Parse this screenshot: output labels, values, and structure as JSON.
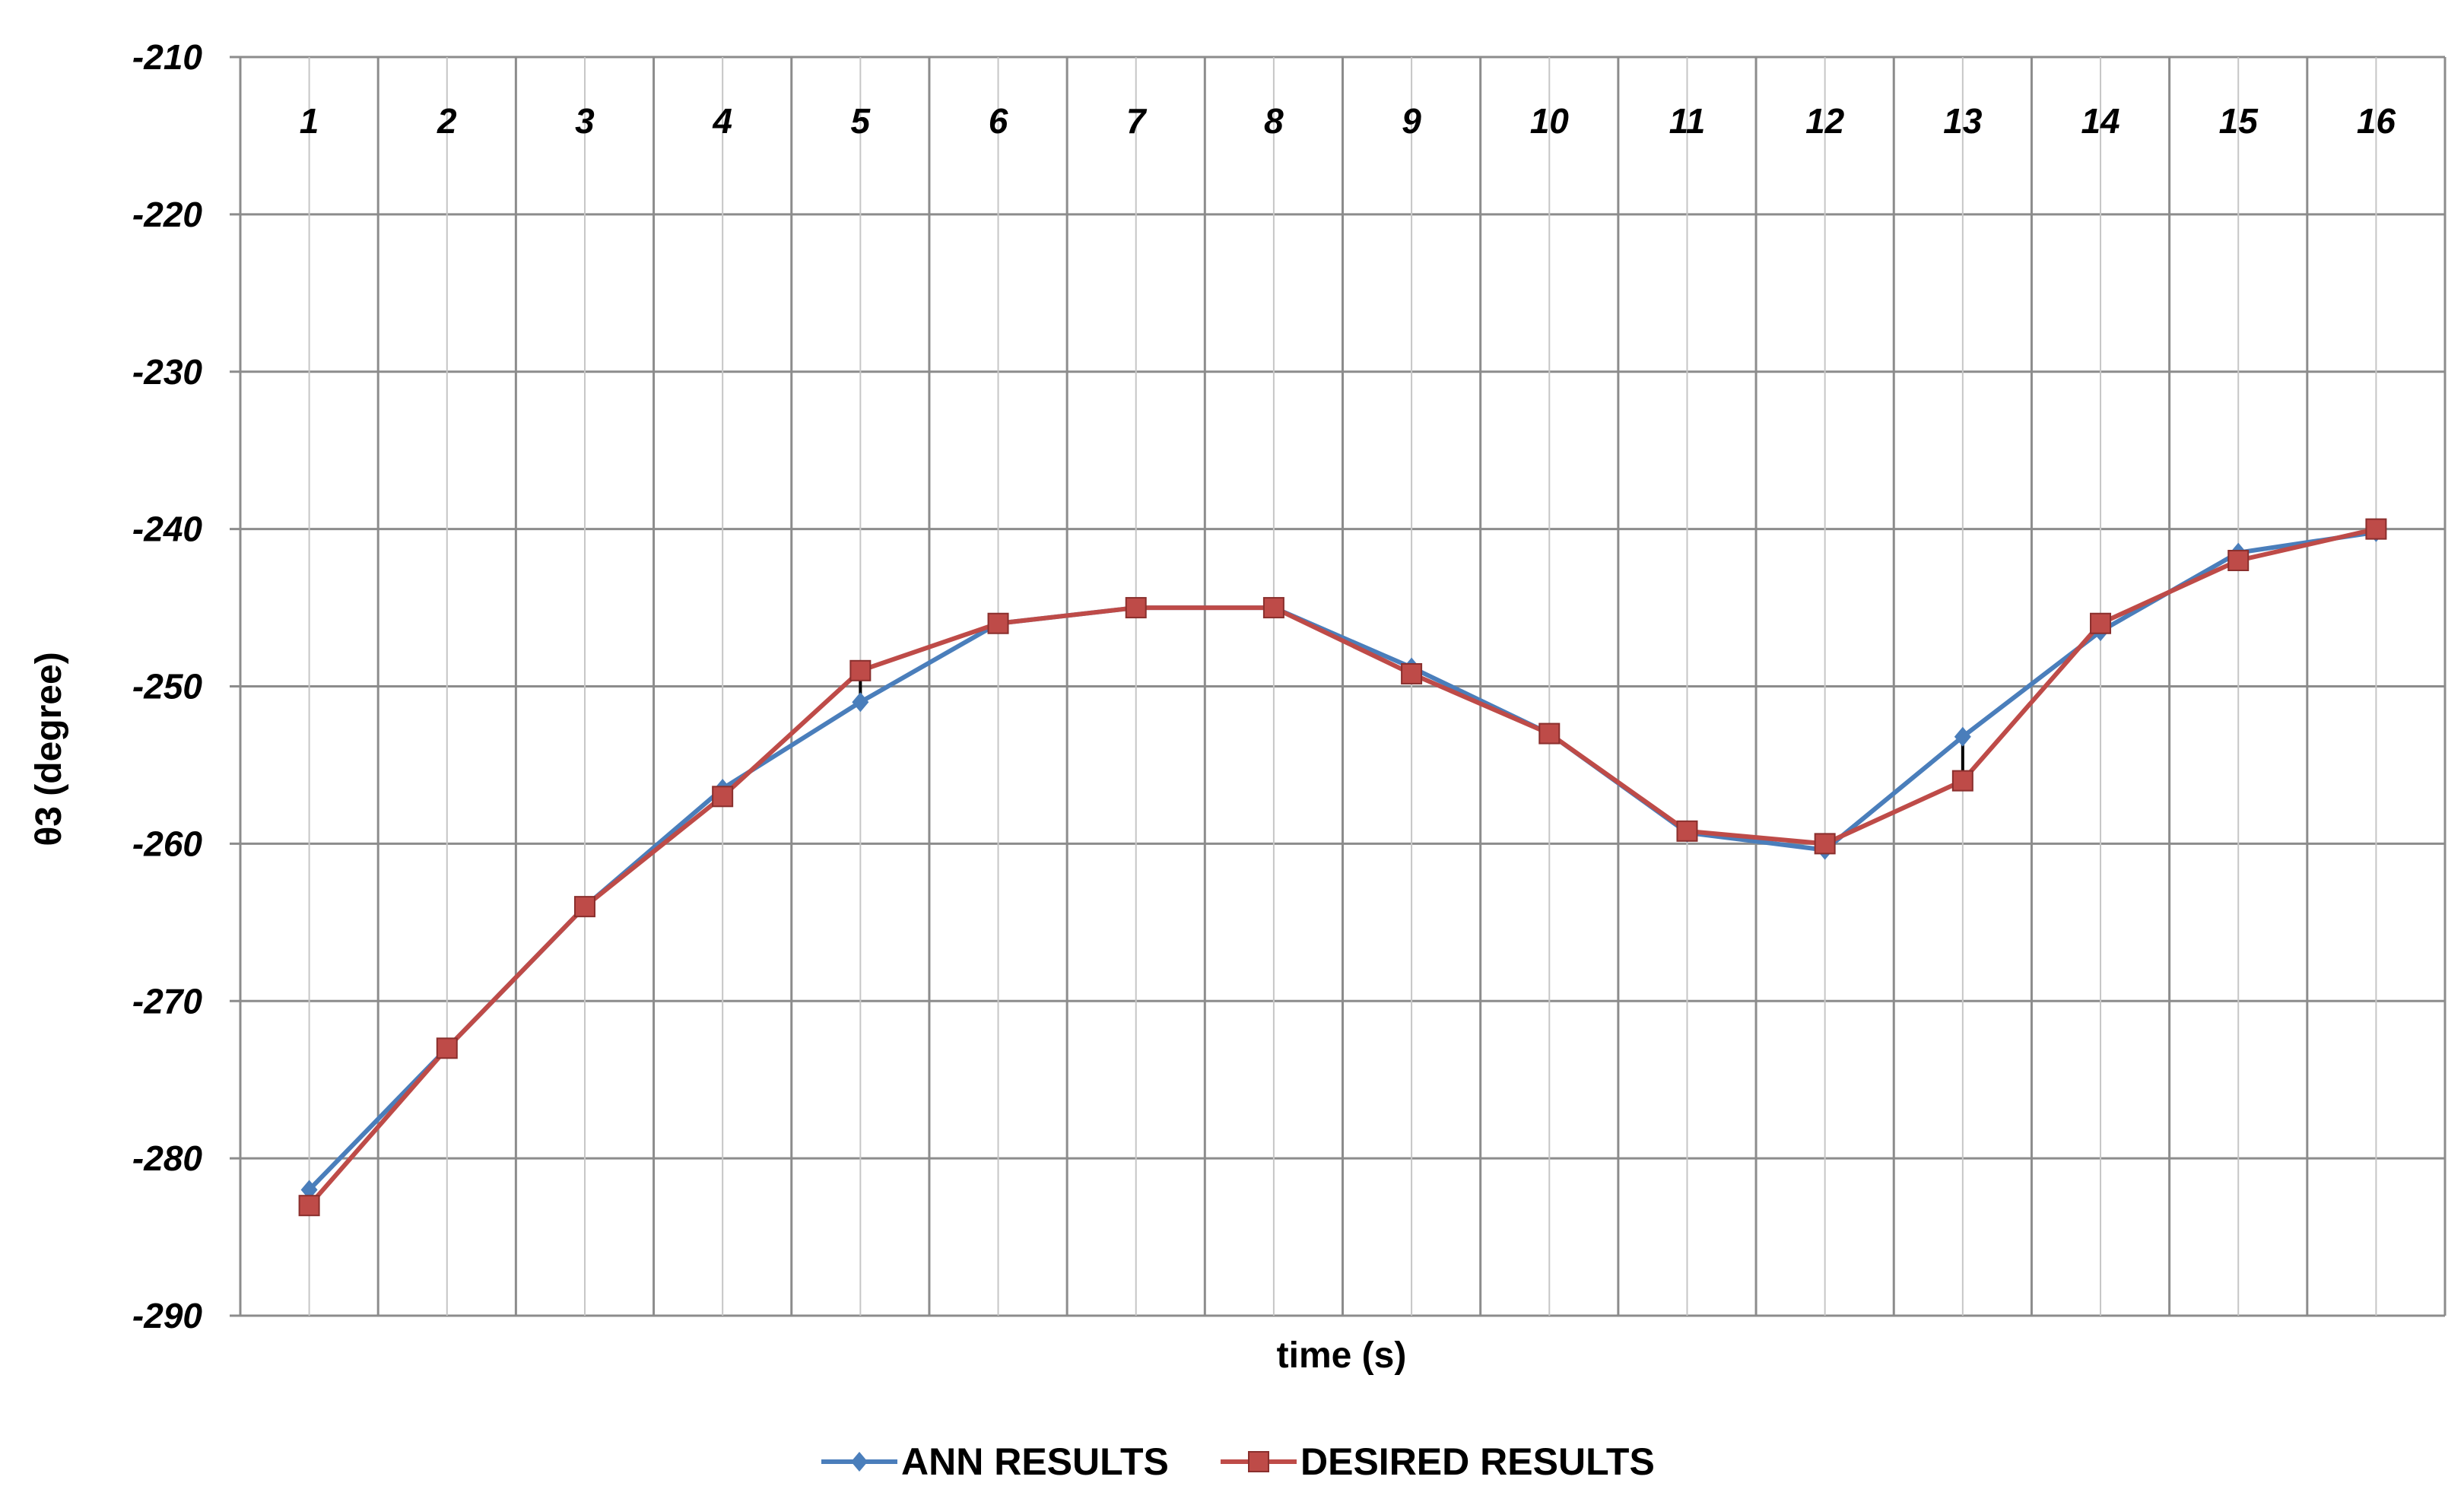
{
  "chart_data": {
    "type": "line",
    "title": "",
    "xlabel": "time (s)",
    "ylabel": "θ3 (degree)",
    "ylim": [
      -290,
      -210
    ],
    "yticks": [
      -210,
      -220,
      -230,
      -240,
      -250,
      -260,
      -270,
      -280,
      -290
    ],
    "x": [
      1,
      2,
      3,
      4,
      5,
      6,
      7,
      8,
      9,
      10,
      11,
      12,
      13,
      14,
      15,
      16
    ],
    "x_tick_labels": [
      "1",
      "2",
      "3",
      "4",
      "5",
      "6",
      "7",
      "8",
      "9",
      "10",
      "11",
      "12",
      "13",
      "14",
      "15",
      "16"
    ],
    "x_tick_position": "top",
    "grid": true,
    "legend_position": "bottom-center",
    "series": [
      {
        "name": "ANN RESULTS",
        "color": "#4a7ebb",
        "marker": "diamond",
        "values": [
          -282,
          -273,
          -264,
          -256.5,
          -251,
          -246,
          -245,
          -245,
          -248.8,
          -253,
          -259.3,
          -260.4,
          -253.2,
          -246.5,
          -241.5,
          -240.2
        ]
      },
      {
        "name": "DESIRED RESULTS",
        "color": "#be4b48",
        "marker": "square",
        "values": [
          -283,
          -273,
          -264,
          -257,
          -249,
          -246,
          -245,
          -245,
          -249.2,
          -253,
          -259.2,
          -260,
          -256,
          -246,
          -242,
          -240
        ]
      }
    ]
  }
}
